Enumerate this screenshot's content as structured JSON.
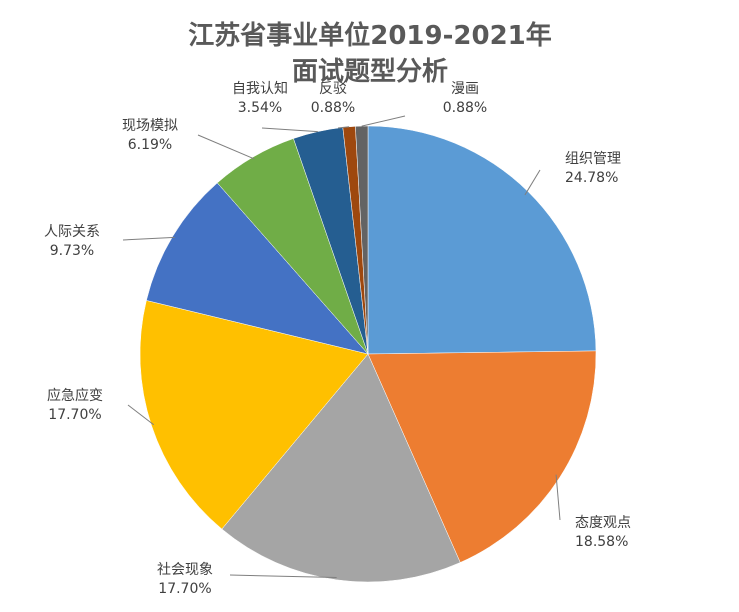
{
  "chart_data": {
    "type": "pie",
    "title": "江苏省事业单位2019-2021年面试题型分析",
    "title_lines": [
      "江苏省事业单位2019-2021年",
      "面试题型分析"
    ],
    "slices": [
      {
        "label": "组织管理",
        "value": 24.78,
        "value_label": "24.78%",
        "color": "#5b9bd5"
      },
      {
        "label": "态度观点",
        "value": 18.58,
        "value_label": "18.58%",
        "color": "#ed7d31"
      },
      {
        "label": "社会现象",
        "value": 17.7,
        "value_label": "17.70%",
        "color": "#a5a5a5"
      },
      {
        "label": "应急应变",
        "value": 17.7,
        "value_label": "17.70%",
        "color": "#ffc000"
      },
      {
        "label": "人际关系",
        "value": 9.73,
        "value_label": "9.73%",
        "color": "#4472c4"
      },
      {
        "label": "现场模拟",
        "value": 6.19,
        "value_label": "6.19%",
        "color": "#70ad47"
      },
      {
        "label": "自我认知",
        "value": 3.54,
        "value_label": "3.54%",
        "color": "#255e91"
      },
      {
        "label": "反驳",
        "value": 0.88,
        "value_label": "0.88%",
        "color": "#9e480e"
      },
      {
        "label": "漫画",
        "value": 0.88,
        "value_label": "0.88%",
        "color": "#636363"
      }
    ],
    "start_angle_deg": 0,
    "direction": "clockwise",
    "legend": "none",
    "data_labels": "outside-with-leader-lines"
  }
}
